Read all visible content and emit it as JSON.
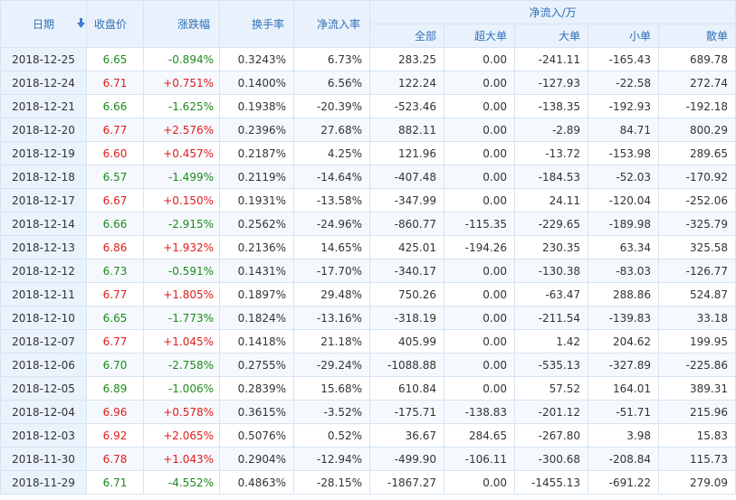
{
  "header": {
    "date": "日期",
    "close": "收盘价",
    "change": "涨跌幅",
    "turnover": "换手率",
    "net_rate": "净流入率",
    "net_group": "净流入/万",
    "all": "全部",
    "super": "超大单",
    "large": "大单",
    "small": "小单",
    "retail": "散单",
    "sort_icon": "sort-down-arrow-icon"
  },
  "colors": {
    "up": "#e01b1b",
    "down": "#1c8a1c",
    "header_text": "#2f6fb7",
    "header_bg": "#e9f2fc"
  },
  "rows": [
    {
      "date": "2018-12-25",
      "close": "6.65",
      "dir": "down",
      "change": "-0.894%",
      "turnover": "0.3243%",
      "net_rate": "6.73%",
      "all": "283.25",
      "super": "0.00",
      "large": "-241.11",
      "small": "-165.43",
      "retail": "689.78"
    },
    {
      "date": "2018-12-24",
      "close": "6.71",
      "dir": "up",
      "change": "+0.751%",
      "turnover": "0.1400%",
      "net_rate": "6.56%",
      "all": "122.24",
      "super": "0.00",
      "large": "-127.93",
      "small": "-22.58",
      "retail": "272.74"
    },
    {
      "date": "2018-12-21",
      "close": "6.66",
      "dir": "down",
      "change": "-1.625%",
      "turnover": "0.1938%",
      "net_rate": "-20.39%",
      "all": "-523.46",
      "super": "0.00",
      "large": "-138.35",
      "small": "-192.93",
      "retail": "-192.18"
    },
    {
      "date": "2018-12-20",
      "close": "6.77",
      "dir": "up",
      "change": "+2.576%",
      "turnover": "0.2396%",
      "net_rate": "27.68%",
      "all": "882.11",
      "super": "0.00",
      "large": "-2.89",
      "small": "84.71",
      "retail": "800.29"
    },
    {
      "date": "2018-12-19",
      "close": "6.60",
      "dir": "up",
      "change": "+0.457%",
      "turnover": "0.2187%",
      "net_rate": "4.25%",
      "all": "121.96",
      "super": "0.00",
      "large": "-13.72",
      "small": "-153.98",
      "retail": "289.65"
    },
    {
      "date": "2018-12-18",
      "close": "6.57",
      "dir": "down",
      "change": "-1.499%",
      "turnover": "0.2119%",
      "net_rate": "-14.64%",
      "all": "-407.48",
      "super": "0.00",
      "large": "-184.53",
      "small": "-52.03",
      "retail": "-170.92"
    },
    {
      "date": "2018-12-17",
      "close": "6.67",
      "dir": "up",
      "change": "+0.150%",
      "turnover": "0.1931%",
      "net_rate": "-13.58%",
      "all": "-347.99",
      "super": "0.00",
      "large": "24.11",
      "small": "-120.04",
      "retail": "-252.06"
    },
    {
      "date": "2018-12-14",
      "close": "6.66",
      "dir": "down",
      "change": "-2.915%",
      "turnover": "0.2562%",
      "net_rate": "-24.96%",
      "all": "-860.77",
      "super": "-115.35",
      "large": "-229.65",
      "small": "-189.98",
      "retail": "-325.79"
    },
    {
      "date": "2018-12-13",
      "close": "6.86",
      "dir": "up",
      "change": "+1.932%",
      "turnover": "0.2136%",
      "net_rate": "14.65%",
      "all": "425.01",
      "super": "-194.26",
      "large": "230.35",
      "small": "63.34",
      "retail": "325.58"
    },
    {
      "date": "2018-12-12",
      "close": "6.73",
      "dir": "down",
      "change": "-0.591%",
      "turnover": "0.1431%",
      "net_rate": "-17.70%",
      "all": "-340.17",
      "super": "0.00",
      "large": "-130.38",
      "small": "-83.03",
      "retail": "-126.77"
    },
    {
      "date": "2018-12-11",
      "close": "6.77",
      "dir": "up",
      "change": "+1.805%",
      "turnover": "0.1897%",
      "net_rate": "29.48%",
      "all": "750.26",
      "super": "0.00",
      "large": "-63.47",
      "small": "288.86",
      "retail": "524.87"
    },
    {
      "date": "2018-12-10",
      "close": "6.65",
      "dir": "down",
      "change": "-1.773%",
      "turnover": "0.1824%",
      "net_rate": "-13.16%",
      "all": "-318.19",
      "super": "0.00",
      "large": "-211.54",
      "small": "-139.83",
      "retail": "33.18"
    },
    {
      "date": "2018-12-07",
      "close": "6.77",
      "dir": "up",
      "change": "+1.045%",
      "turnover": "0.1418%",
      "net_rate": "21.18%",
      "all": "405.99",
      "super": "0.00",
      "large": "1.42",
      "small": "204.62",
      "retail": "199.95"
    },
    {
      "date": "2018-12-06",
      "close": "6.70",
      "dir": "down",
      "change": "-2.758%",
      "turnover": "0.2755%",
      "net_rate": "-29.24%",
      "all": "-1088.88",
      "super": "0.00",
      "large": "-535.13",
      "small": "-327.89",
      "retail": "-225.86"
    },
    {
      "date": "2018-12-05",
      "close": "6.89",
      "dir": "down",
      "change": "-1.006%",
      "turnover": "0.2839%",
      "net_rate": "15.68%",
      "all": "610.84",
      "super": "0.00",
      "large": "57.52",
      "small": "164.01",
      "retail": "389.31"
    },
    {
      "date": "2018-12-04",
      "close": "6.96",
      "dir": "up",
      "change": "+0.578%",
      "turnover": "0.3615%",
      "net_rate": "-3.52%",
      "all": "-175.71",
      "super": "-138.83",
      "large": "-201.12",
      "small": "-51.71",
      "retail": "215.96"
    },
    {
      "date": "2018-12-03",
      "close": "6.92",
      "dir": "up",
      "change": "+2.065%",
      "turnover": "0.5076%",
      "net_rate": "0.52%",
      "all": "36.67",
      "super": "284.65",
      "large": "-267.80",
      "small": "3.98",
      "retail": "15.83"
    },
    {
      "date": "2018-11-30",
      "close": "6.78",
      "dir": "up",
      "change": "+1.043%",
      "turnover": "0.2904%",
      "net_rate": "-12.94%",
      "all": "-499.90",
      "super": "-106.11",
      "large": "-300.68",
      "small": "-208.84",
      "retail": "115.73"
    },
    {
      "date": "2018-11-29",
      "close": "6.71",
      "dir": "down",
      "change": "-4.552%",
      "turnover": "0.4863%",
      "net_rate": "-28.15%",
      "all": "-1867.27",
      "super": "0.00",
      "large": "-1455.13",
      "small": "-691.22",
      "retail": "279.09"
    }
  ]
}
